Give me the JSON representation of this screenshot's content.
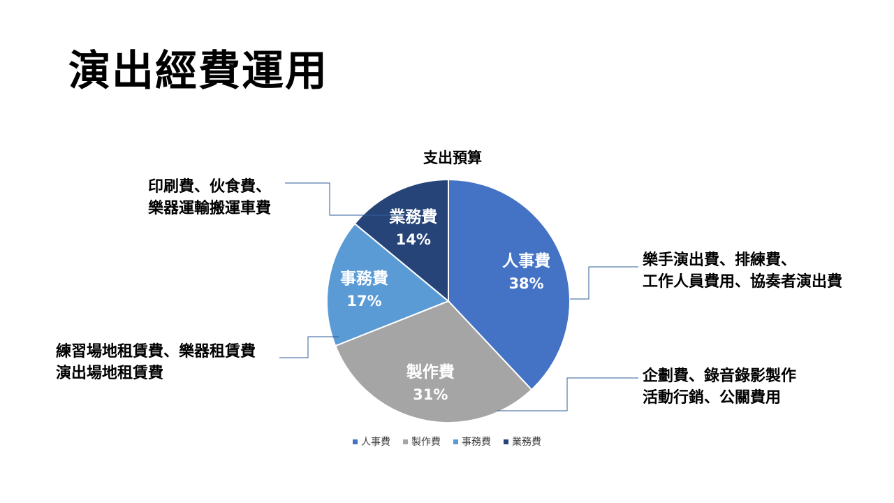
{
  "slide": {
    "title": "演出經費運用"
  },
  "chart_data": {
    "type": "pie",
    "title": "支出預算",
    "categories": [
      "人事費",
      "製作費",
      "事務費",
      "業務費"
    ],
    "values": [
      38,
      31,
      17,
      14
    ],
    "value_labels": [
      "38%",
      "31%",
      "17%",
      "14%"
    ],
    "colors": [
      "#4472C4",
      "#A5A5A5",
      "#5B9BD5",
      "#264478"
    ],
    "legend_position": "bottom",
    "annotations": [
      {
        "category": "人事費",
        "lines": [
          "樂手演出費、排練費、",
          "工作人員費用、協奏者演出費"
        ]
      },
      {
        "category": "製作費",
        "lines": [
          "企劃費、錄音錄影製作",
          "活動行銷、公關費用"
        ]
      },
      {
        "category": "事務費",
        "lines": [
          "練習場地租賃費、樂器租賃費",
          "演出場地租賃費"
        ]
      },
      {
        "category": "業務費",
        "lines": [
          "印刷費、伙食費、",
          "樂器運輸搬運車費"
        ]
      }
    ]
  }
}
